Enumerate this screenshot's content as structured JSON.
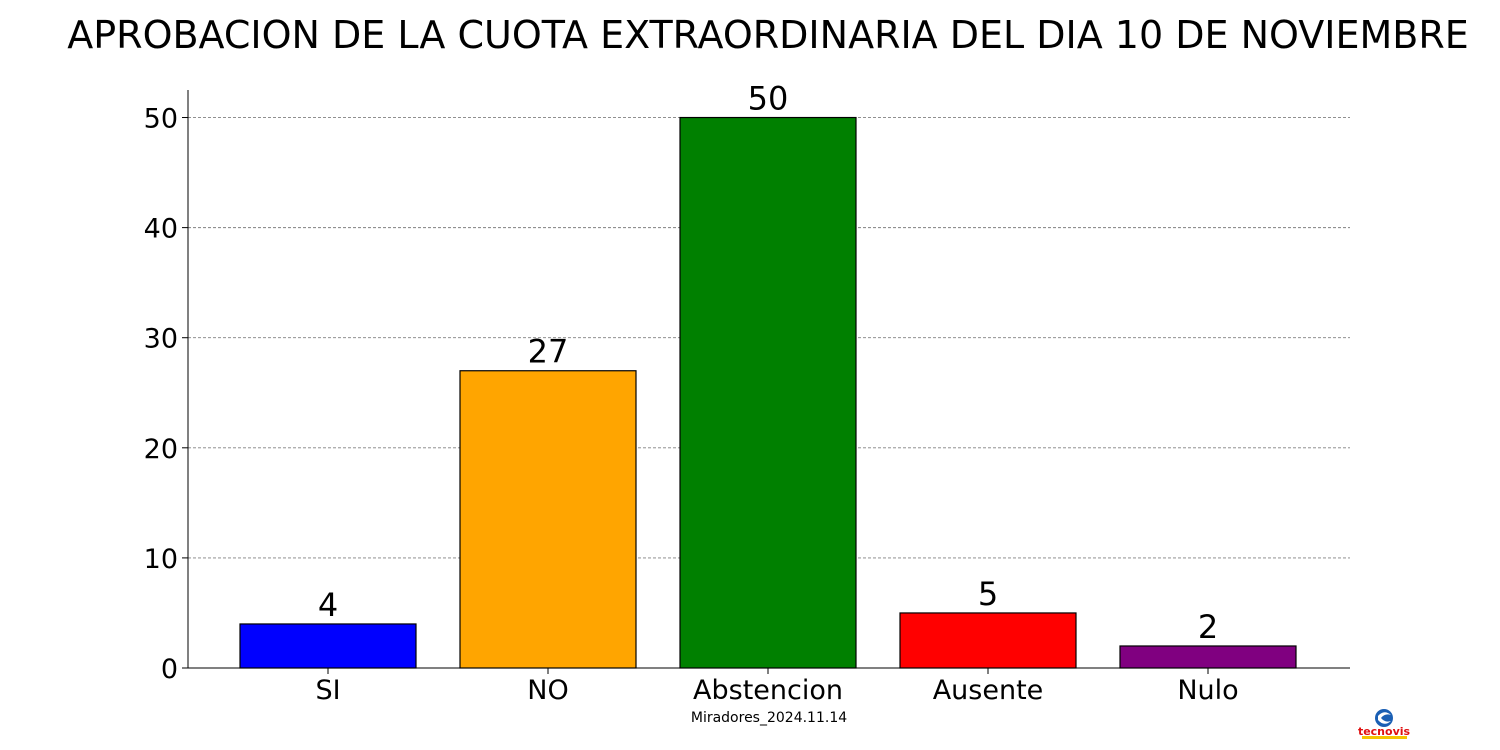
{
  "chart_data": {
    "type": "bar",
    "title": "APROBACION DE LA CUOTA EXTRAORDINARIA DEL DIA 10 DE NOVIEMBRE",
    "categories": [
      "SI",
      "NO",
      "Abstencion",
      "Ausente",
      "Nulo"
    ],
    "values": [
      4,
      27,
      50,
      5,
      2
    ],
    "colors": [
      "#0000ff",
      "#ffa500",
      "#008000",
      "#ff0000",
      "#800080"
    ],
    "bar_edge_color": "#000000",
    "ylim": [
      0,
      52.5
    ],
    "yticks": [
      0,
      10,
      20,
      30,
      40,
      50
    ],
    "grid": "y-dashed",
    "caption": "Miradores_2024.11.14"
  },
  "logo": {
    "name": "tecnovis-logo",
    "text": "tecnovis",
    "colors": [
      "#1a5fb4",
      "#e01010",
      "#f5c400"
    ]
  }
}
